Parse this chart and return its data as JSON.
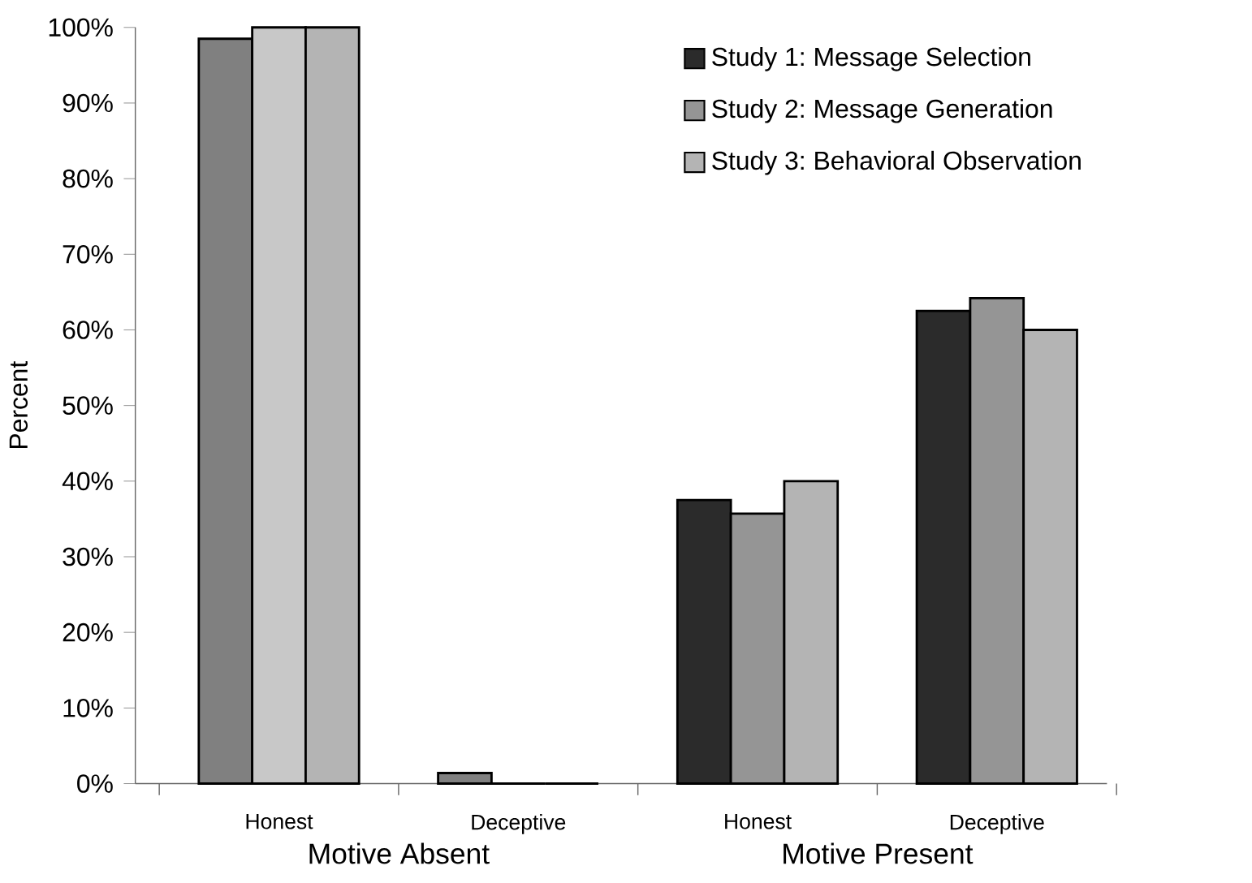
{
  "chart_data": {
    "type": "bar",
    "ylabel": "Percent",
    "categories": [
      "Honest",
      "Deceptive",
      "Honest",
      "Deceptive"
    ],
    "annotations": [
      "Motive Absent",
      "Motive Present"
    ],
    "series": [
      {
        "name": "Study 1: Message Selection",
        "color": "#2b2b2b",
        "colors": [
          "#808080",
          "#808080",
          "#2b2b2b",
          "#2b2b2b"
        ],
        "values": [
          98.5,
          1.4,
          37.5,
          62.5
        ]
      },
      {
        "name": "Study 2: Message Generation",
        "color": "#959595",
        "colors": [
          "#c8c8c8",
          "#c8c8c8",
          "#959595",
          "#959595"
        ],
        "values": [
          100,
          0,
          35.7,
          64.2
        ]
      },
      {
        "name": "Study 3: Behavioral Observation",
        "color": "#b4b4b4",
        "colors": [
          "#b4b4b4",
          "#b4b4b4",
          "#b4b4b4",
          "#b4b4b4"
        ],
        "values": [
          100,
          0,
          40,
          60
        ]
      }
    ],
    "ylim": [
      0,
      100
    ],
    "yticks": [
      {
        "value": 0,
        "label": "0%"
      },
      {
        "value": 10,
        "label": "10%"
      },
      {
        "value": 20,
        "label": "20%"
      },
      {
        "value": 30,
        "label": "30%"
      },
      {
        "value": 40,
        "label": "40%"
      },
      {
        "value": 50,
        "label": "50%"
      },
      {
        "value": 60,
        "label": "60%"
      },
      {
        "value": 70,
        "label": "70%"
      },
      {
        "value": 80,
        "label": "80%"
      },
      {
        "value": 90,
        "label": "90%"
      },
      {
        "value": 100,
        "label": "100%"
      }
    ],
    "legend": "top right"
  }
}
